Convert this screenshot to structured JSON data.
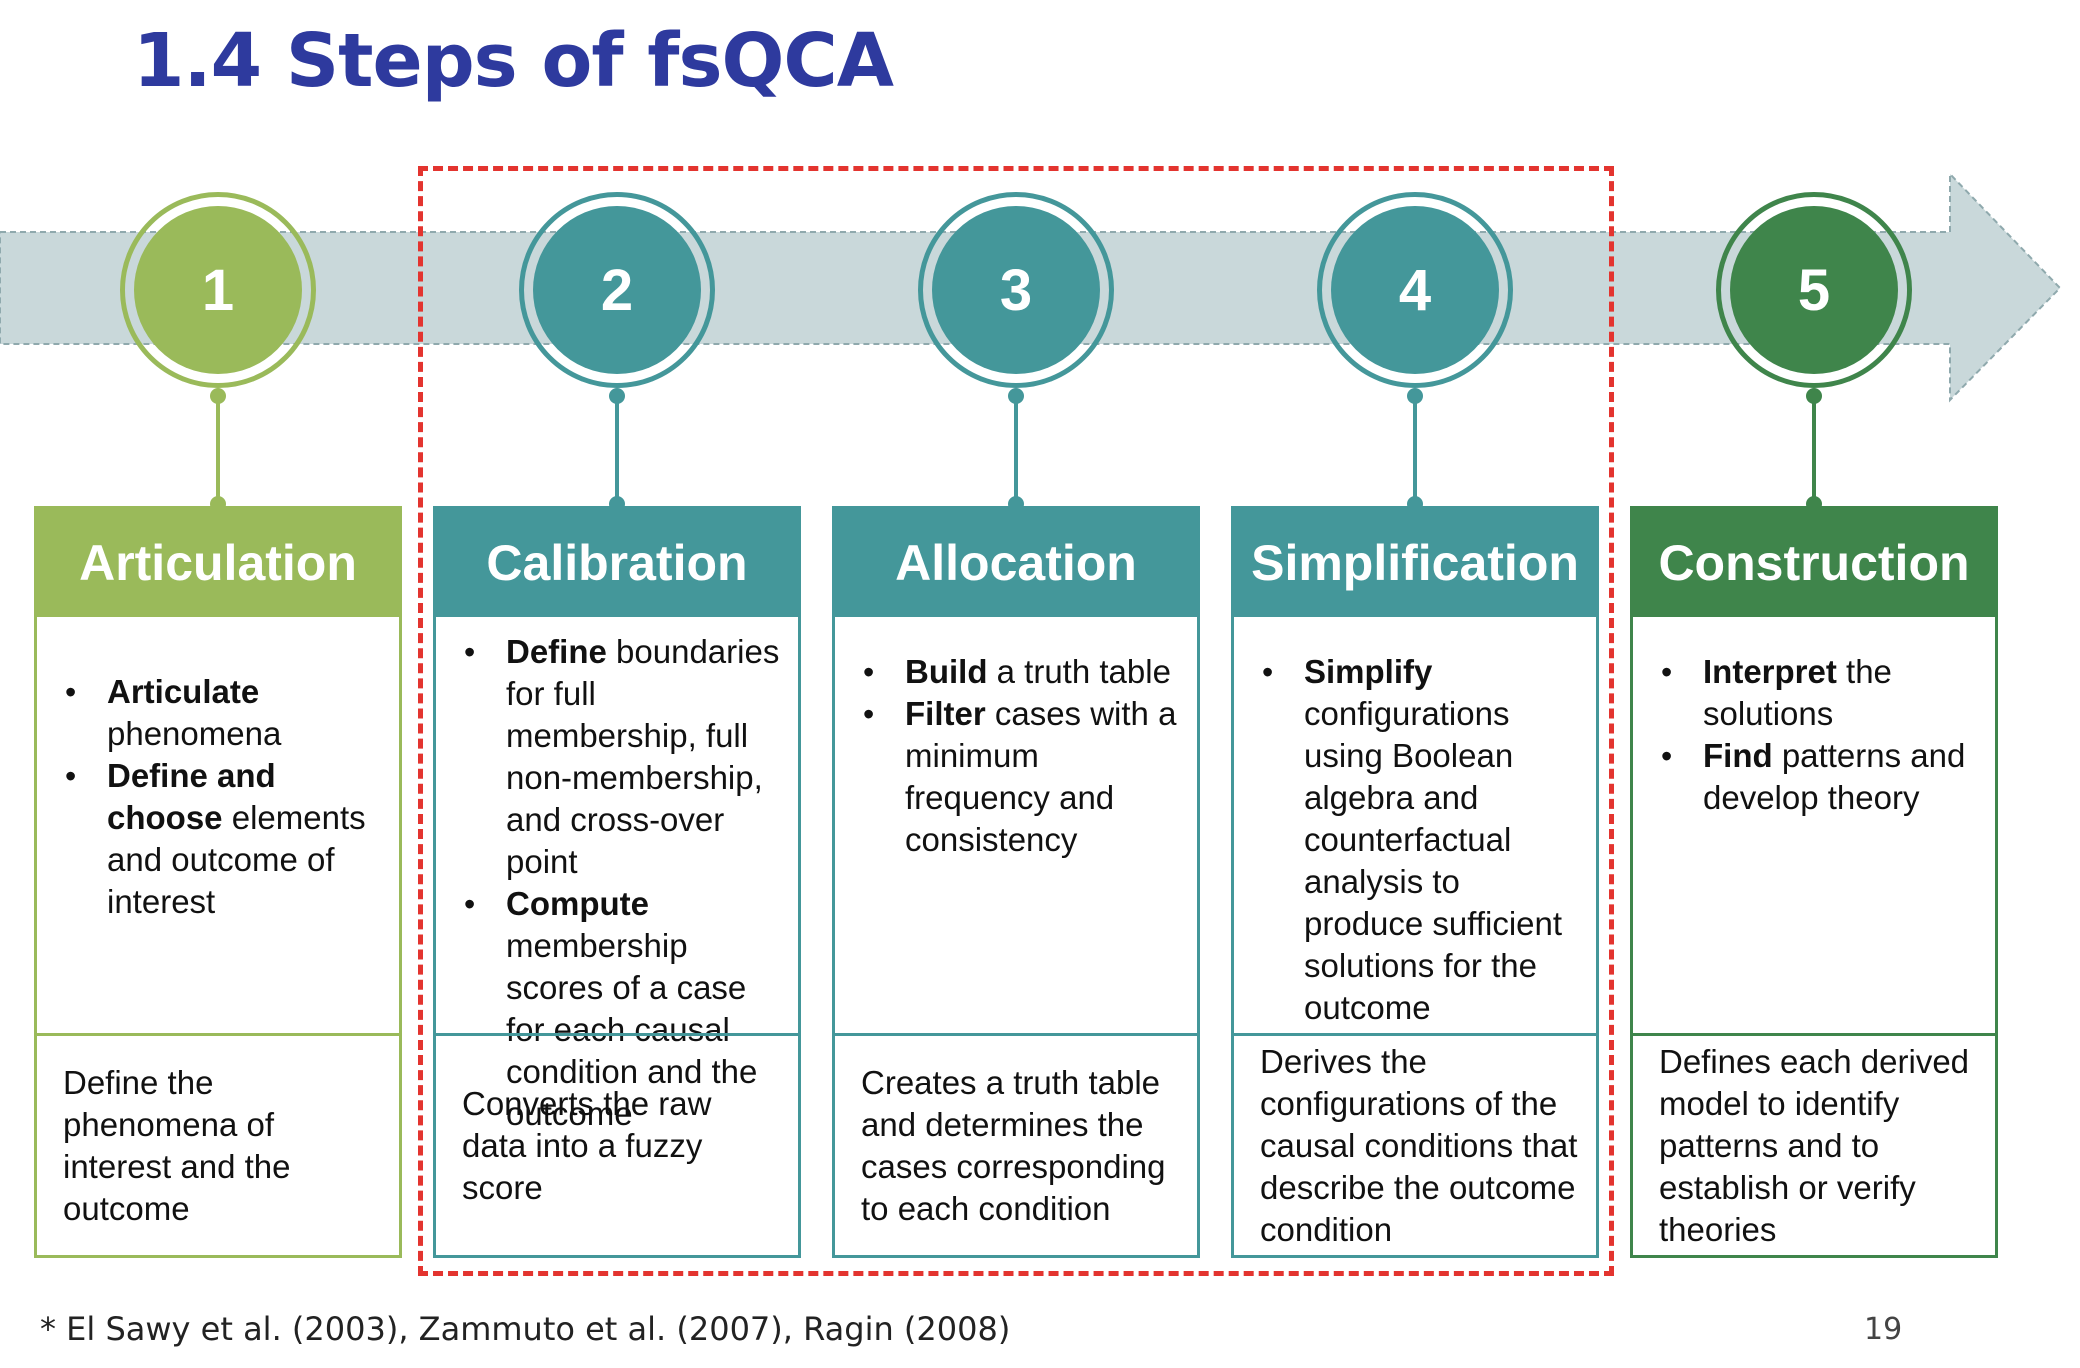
{
  "title": "1.4 Steps of fsQCA",
  "colors": {
    "title": "#2e3a9e",
    "arrow_fill": "#c9d8da",
    "arrow_border": "#8fa9ad",
    "highlight_box": "#e3342f"
  },
  "steps": [
    {
      "number": "1",
      "header": "Articulation",
      "color": "#9aba5a",
      "bullets": [
        {
          "bold": "Articulate",
          "text": " phenomena"
        },
        {
          "bold": "Define and choose",
          "text": " elements and outcome of interest"
        }
      ],
      "summary": "Define the phenomena of interest and the outcome"
    },
    {
      "number": "2",
      "header": "Calibration",
      "color": "#44979a",
      "bullets": [
        {
          "bold": "Define",
          "text": " boundaries for full membership, full non-membership, and cross-over point"
        },
        {
          "bold": "Compute",
          "text": " membership scores of a case for each causal condition and the outcome"
        }
      ],
      "summary": "Converts the raw data into a fuzzy score"
    },
    {
      "number": "3",
      "header": "Allocation",
      "color": "#44979a",
      "bullets": [
        {
          "bold": "Build",
          "text": " a truth table"
        },
        {
          "bold": "Filter",
          "text": " cases with a minimum frequency and consistency"
        }
      ],
      "summary": "Creates a truth table and determines the cases corresponding to each condition"
    },
    {
      "number": "4",
      "header": "Simplification",
      "color": "#44979a",
      "bullets": [
        {
          "bold": "Simplify",
          "text": " configurations using Boolean algebra and counterfactual analysis to produce sufficient solutions for the outcome"
        }
      ],
      "summary": "Derives the configurations of the causal conditions that describe the outcome condition"
    },
    {
      "number": "5",
      "header": "Construction",
      "color": "#3f854b",
      "bullets": [
        {
          "bold": "Interpret",
          "text": " the solutions"
        },
        {
          "bold": "Find",
          "text": " patterns and develop theory"
        }
      ],
      "summary": "Defines each derived model to identify patterns and to establish or verify theories"
    }
  ],
  "footnote": "* El Sawy et al. (2003), Zammuto et al. (2007), Ragin (2008)",
  "page_number": "19"
}
